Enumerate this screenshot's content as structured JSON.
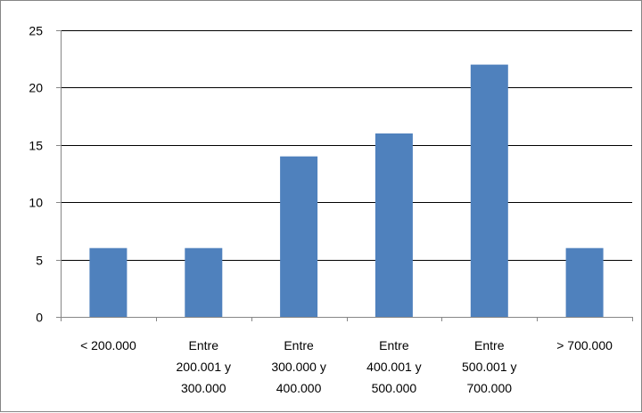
{
  "chart_data": {
    "type": "bar",
    "categories": [
      [
        "< 200.000"
      ],
      [
        "Entre",
        "200.001 y",
        "300.000"
      ],
      [
        "Entre",
        "300.000 y",
        "400.000"
      ],
      [
        "Entre",
        "400.001 y",
        "500.000"
      ],
      [
        "Entre",
        "500.001 y",
        "700.000"
      ],
      [
        "> 700.000"
      ]
    ],
    "values": [
      6,
      6,
      14,
      16,
      22,
      6
    ],
    "ylim": [
      0,
      25
    ],
    "yticks": [
      0,
      5,
      10,
      15,
      20,
      25
    ],
    "title": "",
    "xlabel": "",
    "ylabel": "",
    "grid": true,
    "legend": "none",
    "colors": {
      "bar": "#4F81BD",
      "gridline": "#000000",
      "axis": "#868686",
      "border": "#868686"
    }
  }
}
